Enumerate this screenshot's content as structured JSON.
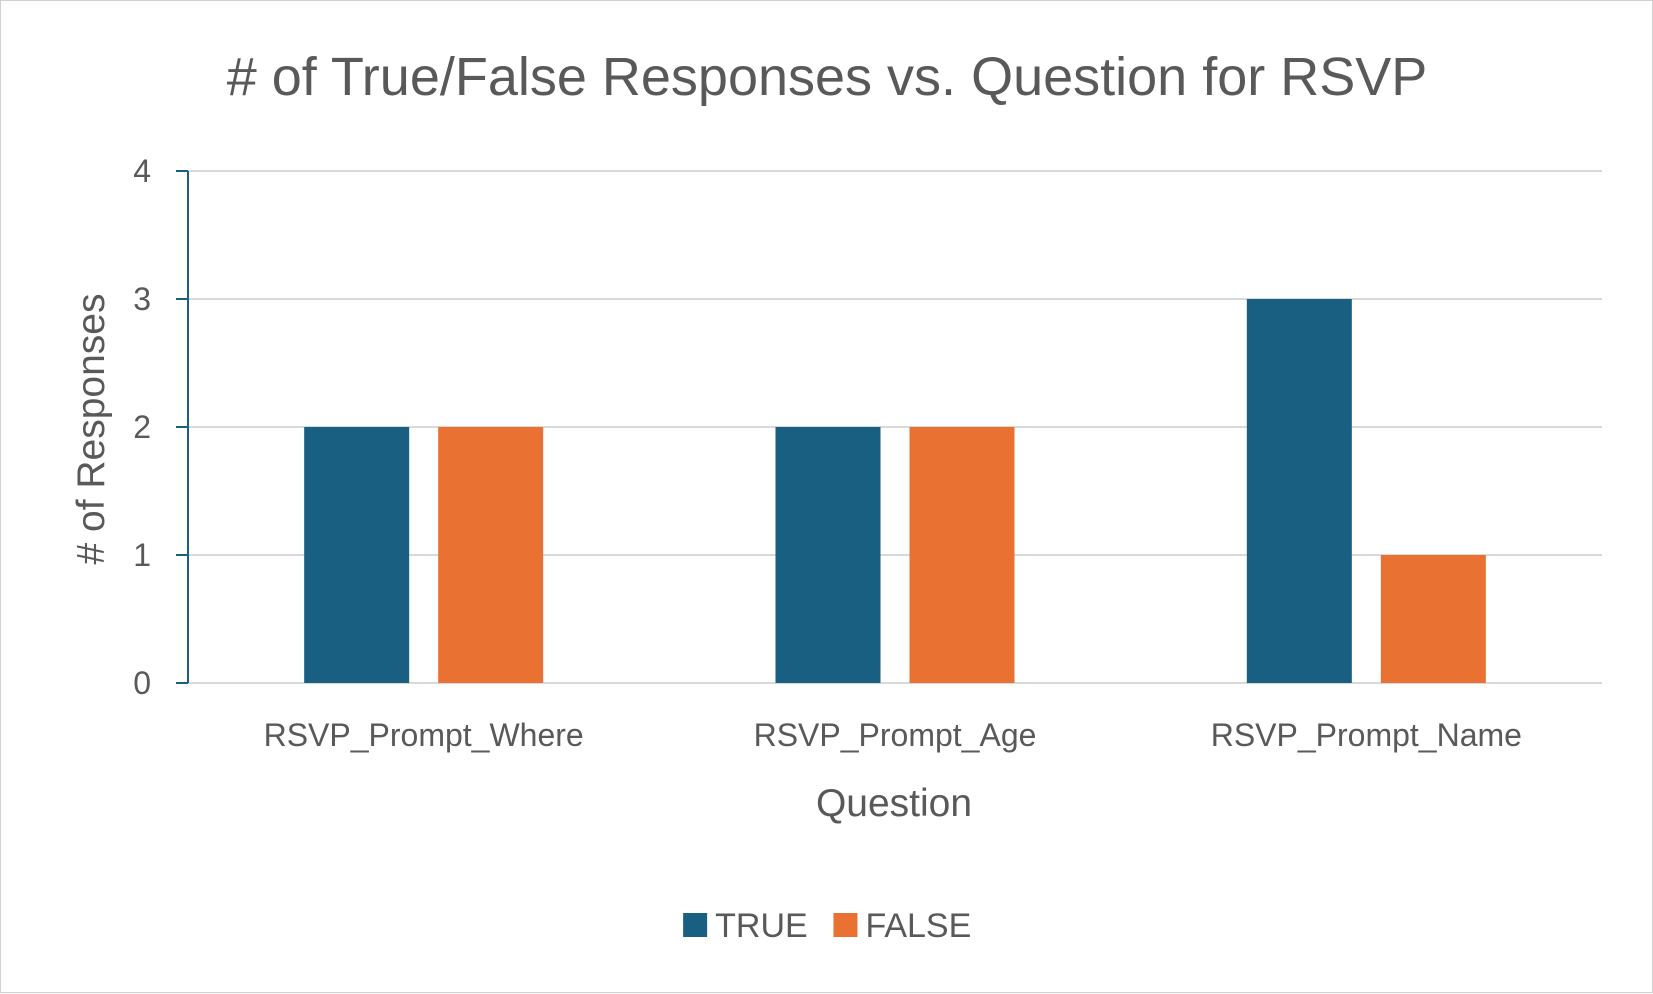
{
  "chart_data": {
    "type": "bar",
    "title": "# of True/False Responses vs. Question for RSVP",
    "xlabel": "Question",
    "ylabel": "# of Responses",
    "categories": [
      "RSVP_Prompt_Where",
      "RSVP_Prompt_Age",
      "RSVP_Prompt_Name"
    ],
    "series": [
      {
        "name": "TRUE",
        "values": [
          2,
          2,
          3
        ],
        "color": "#185f82"
      },
      {
        "name": "FALSE",
        "values": [
          2,
          2,
          1
        ],
        "color": "#e97132"
      }
    ],
    "ylim": [
      0,
      4
    ],
    "yticks": [
      0,
      1,
      2,
      3,
      4
    ],
    "grid": true,
    "legend_position": "bottom"
  }
}
